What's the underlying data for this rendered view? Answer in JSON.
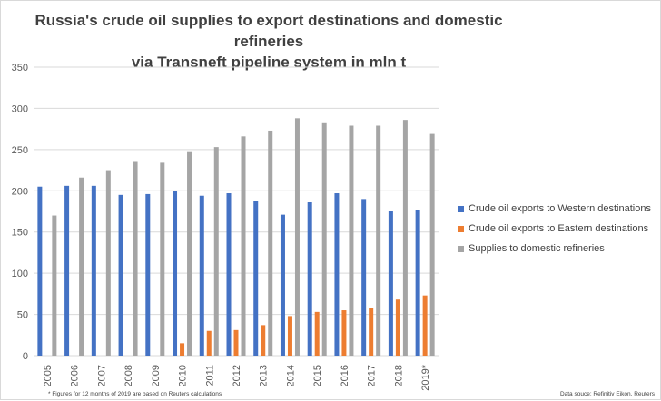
{
  "chart_data": {
    "type": "bar",
    "title_line1": "Russia's crude oil supplies to export destinations and domestic refineries",
    "title_line2": "via Transneft pipeline system in mln t",
    "categories": [
      "2005",
      "2006",
      "2007",
      "2008",
      "2009",
      "2010",
      "2011",
      "2012",
      "2013",
      "2014",
      "2015",
      "2016",
      "2017",
      "2018",
      "2019*"
    ],
    "series": [
      {
        "name": "Crude oil exports to Western destinations",
        "color": "#4472c4",
        "values": [
          205,
          206,
          206,
          195,
          196,
          200,
          194,
          197,
          188,
          171,
          186,
          197,
          190,
          175,
          177
        ]
      },
      {
        "name": "Crude oil exports to Eastern destinations",
        "color": "#ed7d31",
        "values": [
          0,
          0,
          0,
          0,
          0,
          15,
          30,
          31,
          37,
          48,
          53,
          55,
          58,
          68,
          73
        ]
      },
      {
        "name": "Supplies to domestic refineries",
        "color": "#a5a5a5",
        "values": [
          170,
          216,
          225,
          235,
          234,
          248,
          253,
          266,
          273,
          288,
          282,
          279,
          279,
          286,
          269
        ]
      }
    ],
    "ylim": [
      0,
      350
    ],
    "yticks": [
      0,
      50,
      100,
      150,
      200,
      250,
      300,
      350
    ],
    "grid": true,
    "legend_position": "right",
    "footnote": "* Figures for 12 months of 2019 are based on Reuters calculations",
    "source": "Data souce: Refinitiv Eikon, Reuters"
  }
}
